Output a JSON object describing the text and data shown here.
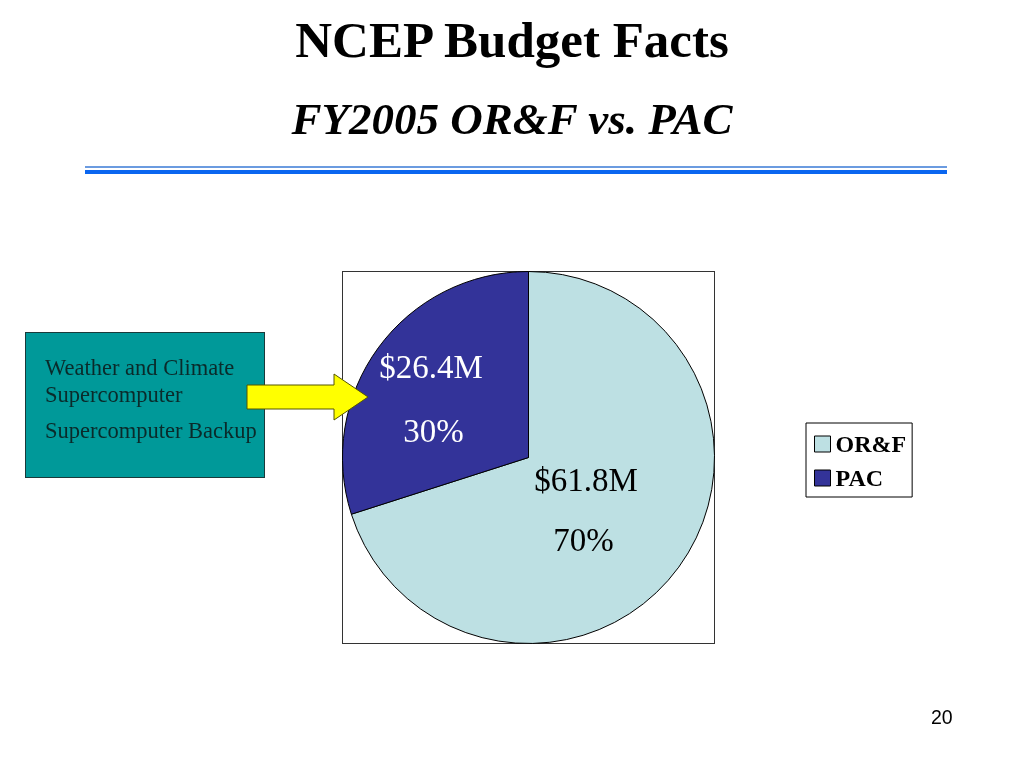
{
  "chart_data": {
    "type": "pie",
    "title": "NCEP Budget Facts",
    "subtitle": "FY2005 OR&F vs. PAC",
    "categories": [
      "OR&F",
      "PAC"
    ],
    "values": [
      61.8,
      26.4
    ],
    "colors": [
      "#bde0e3",
      "#333399"
    ],
    "value_labels": [
      "$61.8M",
      "$26.4M"
    ],
    "legend": "right",
    "annotations": [
      "Weather and Climate Supercomputer",
      "Supercomputer Backup",
      {
        "text": "70%",
        "x": "OR&F"
      },
      {
        "text": "30%",
        "x": "PAC"
      },
      "20"
    ]
  }
}
